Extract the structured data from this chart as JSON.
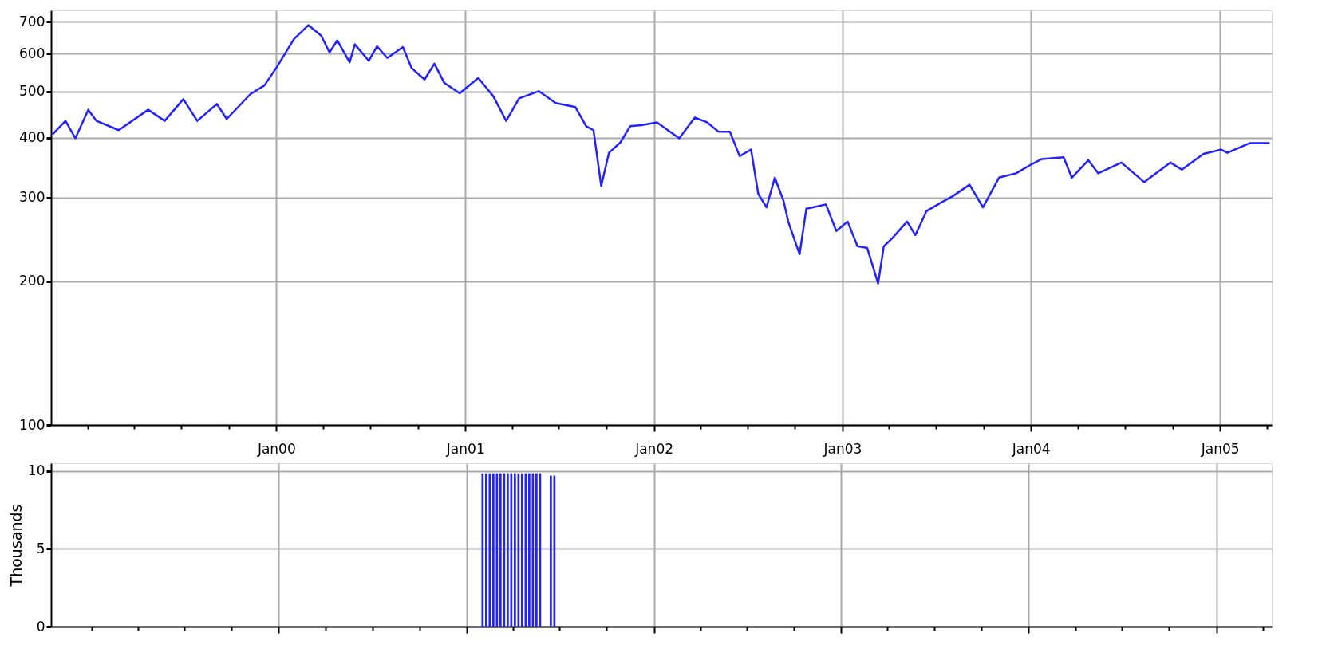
{
  "chart_data": [
    {
      "type": "line",
      "color": "#2222ff",
      "log": true,
      "grid": true,
      "marker": "none",
      "line_style": "solid",
      "xlim": [
        "1998-10-22",
        "2005-04-11"
      ],
      "ylim": [
        100,
        740
      ],
      "yticks": [
        100,
        200,
        300,
        400,
        500,
        600,
        700
      ],
      "xticks": [
        {
          "value": "1999-01-01",
          "label": null
        },
        {
          "value": "1999-04-01",
          "label": null
        },
        {
          "value": "1999-07-01",
          "label": null
        },
        {
          "value": "1999-10-01",
          "label": null
        },
        {
          "value": "2000-01-01",
          "label": "Jan00"
        },
        {
          "value": "2000-04-01",
          "label": null
        },
        {
          "value": "2000-07-01",
          "label": null
        },
        {
          "value": "2000-10-01",
          "label": null
        },
        {
          "value": "2001-01-01",
          "label": "Jan01"
        },
        {
          "value": "2001-04-01",
          "label": null
        },
        {
          "value": "2001-07-01",
          "label": null
        },
        {
          "value": "2001-10-01",
          "label": null
        },
        {
          "value": "2002-01-01",
          "label": "Jan02"
        },
        {
          "value": "2002-04-01",
          "label": null
        },
        {
          "value": "2002-07-01",
          "label": null
        },
        {
          "value": "2002-10-01",
          "label": null
        },
        {
          "value": "2003-01-01",
          "label": "Jan03"
        },
        {
          "value": "2003-04-01",
          "label": null
        },
        {
          "value": "2003-07-01",
          "label": null
        },
        {
          "value": "2003-10-01",
          "label": null
        },
        {
          "value": "2004-01-01",
          "label": "Jan04"
        },
        {
          "value": "2004-04-01",
          "label": null
        },
        {
          "value": "2004-07-01",
          "label": null
        },
        {
          "value": "2004-10-01",
          "label": null
        },
        {
          "value": "2005-01-01",
          "label": "Jan05"
        },
        {
          "value": "2005-04-01",
          "label": null
        }
      ],
      "x": [
        "1998-10-25",
        "1998-11-19",
        "1998-12-08",
        "1999-01-02",
        "1999-01-18",
        "1999-03-02",
        "1999-04-28",
        "1999-05-30",
        "1999-07-05",
        "1999-08-01",
        "1999-09-08",
        "1999-09-27",
        "1999-11-12",
        "1999-12-09",
        "2000-01-03",
        "2000-02-04",
        "2000-03-03",
        "2000-03-28",
        "2000-04-13",
        "2000-04-28",
        "2000-05-22",
        "2000-06-01",
        "2000-06-28",
        "2000-07-14",
        "2000-08-03",
        "2000-09-02",
        "2000-09-19",
        "2000-10-14",
        "2000-11-02",
        "2000-11-21",
        "2000-12-21",
        "2001-01-26",
        "2001-02-24",
        "2001-03-21",
        "2001-04-15",
        "2001-05-23",
        "2001-06-25",
        "2001-08-02",
        "2001-08-23",
        "2001-09-06",
        "2001-09-21",
        "2001-10-06",
        "2001-10-28",
        "2001-11-16",
        "2001-12-08",
        "2002-01-07",
        "2002-02-19",
        "2002-03-21",
        "2002-04-14",
        "2002-05-06",
        "2002-05-28",
        "2002-06-16",
        "2002-07-08",
        "2002-07-22",
        "2002-08-07",
        "2002-08-23",
        "2002-09-09",
        "2002-09-18",
        "2002-10-10",
        "2002-10-23",
        "2002-11-05",
        "2002-11-30",
        "2002-12-20",
        "2003-01-11",
        "2003-01-30",
        "2003-02-18",
        "2003-03-11",
        "2003-03-22",
        "2003-04-07",
        "2003-05-06",
        "2003-05-22",
        "2003-06-13",
        "2003-07-12",
        "2003-08-03",
        "2003-09-04",
        "2003-09-30",
        "2003-10-31",
        "2003-12-03",
        "2004-01-02",
        "2004-01-22",
        "2004-03-04",
        "2004-03-20",
        "2004-04-21",
        "2004-05-10",
        "2004-06-24",
        "2004-08-07",
        "2004-09-27",
        "2004-10-19",
        "2004-11-30",
        "2005-01-03",
        "2005-01-15",
        "2005-02-28",
        "2005-04-07"
      ],
      "values": [
        407,
        434,
        399,
        458,
        434,
        415,
        458,
        434,
        482,
        434,
        471,
        438,
        494,
        515,
        565,
        644,
        689,
        655,
        604,
        640,
        576,
        628,
        580,
        622,
        588,
        620,
        560,
        530,
        572,
        522,
        496,
        534,
        489,
        434,
        484,
        501,
        473,
        464,
        423,
        415,
        317,
        372,
        391,
        423,
        425,
        431,
        399,
        441,
        431,
        412,
        412,
        366,
        378,
        305,
        286,
        330,
        295,
        267,
        228,
        284,
        286,
        290,
        255,
        267,
        237,
        235,
        198,
        237,
        246,
        267,
        250,
        281,
        293,
        302,
        319,
        286,
        330,
        337,
        352,
        361,
        364,
        330,
        359,
        337,
        355,
        323,
        355,
        343,
        370,
        378,
        372,
        390,
        390
      ]
    },
    {
      "type": "bar",
      "color": "#2222ff",
      "grid": true,
      "ylabel": "Thousands",
      "tick_labels": "y",
      "xlim": [
        "1998-10-22",
        "2005-04-11"
      ],
      "ylim": [
        0,
        10.5
      ],
      "yticks": [
        0,
        5,
        10
      ],
      "x": [
        "2001-02-01",
        "2001-02-08",
        "2001-02-15",
        "2001-02-22",
        "2001-03-01",
        "2001-03-08",
        "2001-03-15",
        "2001-03-22",
        "2001-03-29",
        "2001-04-05",
        "2001-04-12",
        "2001-04-19",
        "2001-04-26",
        "2001-05-03",
        "2001-05-10",
        "2001-05-17",
        "2001-05-24",
        "2001-06-14",
        "2001-06-21"
      ],
      "values": [
        9.85,
        9.85,
        9.85,
        9.85,
        9.85,
        9.85,
        9.85,
        9.85,
        9.85,
        9.85,
        9.85,
        9.85,
        9.85,
        9.85,
        9.85,
        9.85,
        9.85,
        9.7,
        9.7
      ]
    }
  ]
}
